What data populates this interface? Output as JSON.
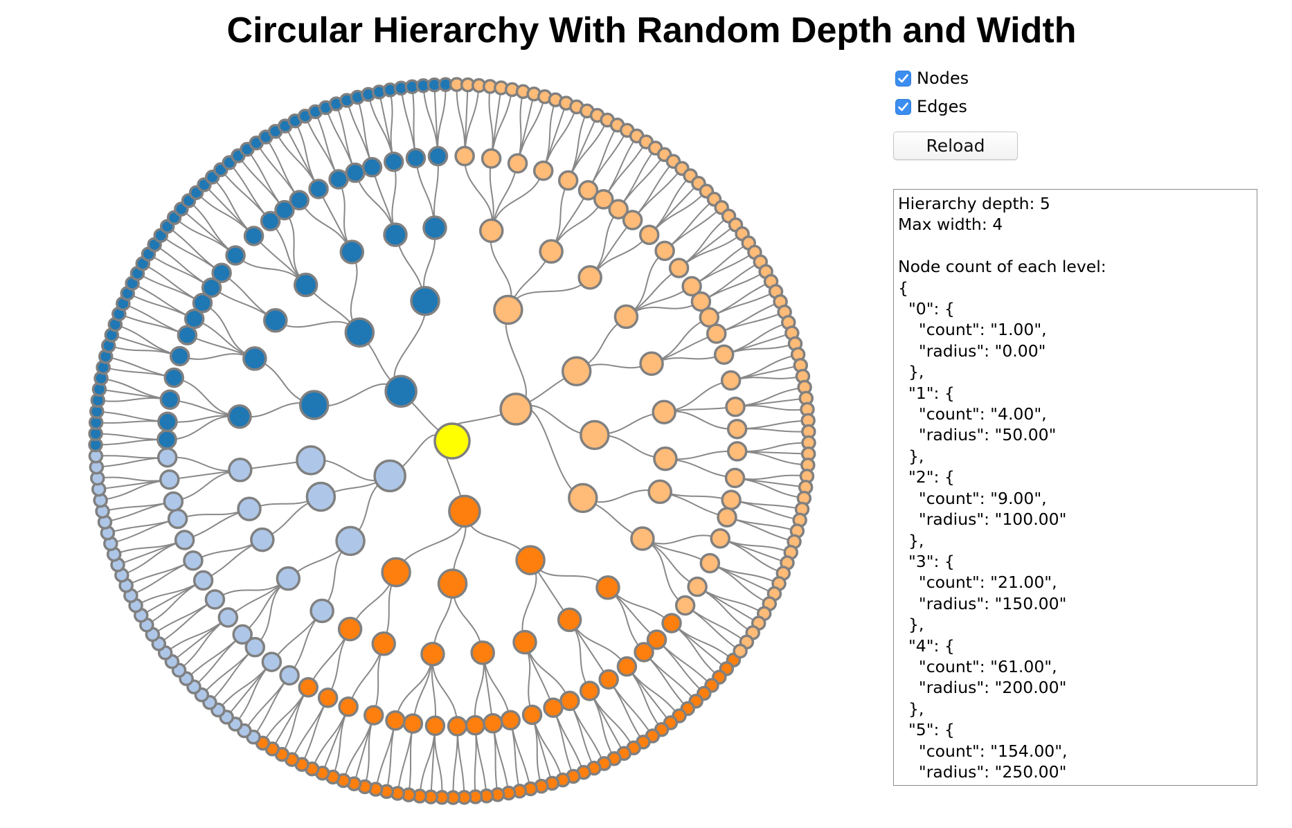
{
  "page": {
    "title": "Circular Hierarchy With Random Depth and Width"
  },
  "controls": {
    "nodes_label": "Nodes",
    "nodes_checked": true,
    "edges_label": "Edges",
    "edges_checked": true,
    "reload_label": "Reload"
  },
  "info": {
    "text": "Hierarchy depth: 5\nMax width: 4\n\nNode count of each level:\n{\n  \"0\": {\n    \"count\": \"1.00\",\n    \"radius\": \"0.00\"\n  },\n  \"1\": {\n    \"count\": \"4.00\",\n    \"radius\": \"50.00\"\n  },\n  \"2\": {\n    \"count\": \"9.00\",\n    \"radius\": \"100.00\"\n  },\n  \"3\": {\n    \"count\": \"21.00\",\n    \"radius\": \"150.00\"\n  },\n  \"4\": {\n    \"count\": \"61.00\",\n    \"radius\": \"200.00\"\n  },\n  \"5\": {\n    \"count\": \"154.00\",\n    \"radius\": \"250.00\"\n  }\n}"
  },
  "hierarchy": {
    "depth": 5,
    "max_width": 4,
    "level_radius": [
      0,
      50,
      100,
      150,
      200,
      250
    ],
    "level_counts": [
      1,
      4,
      9,
      21,
      61,
      154
    ],
    "colors": {
      "root": "#ffff00",
      "branches": [
        "#ff7f0e",
        "#aec7e8",
        "#1f77b4",
        "#ffbb78"
      ],
      "node_stroke": "#808080",
      "edge": "#888888"
    },
    "branches": [
      {
        "name": "orange",
        "children": [
          3,
          2,
          2
        ]
      },
      {
        "name": "light-blue",
        "children": [
          2,
          2,
          1
        ]
      },
      {
        "name": "dark-blue",
        "children": [
          2,
          3,
          2
        ]
      },
      {
        "name": "peach",
        "children": [
          3,
          2,
          2,
          2
        ]
      }
    ]
  }
}
